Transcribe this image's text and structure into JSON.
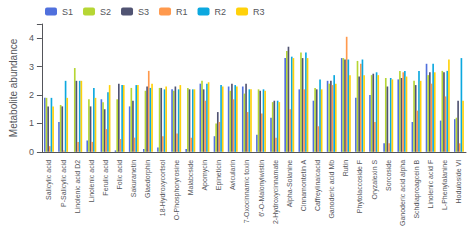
{
  "chart_data": {
    "type": "bar",
    "y_label": "Metabolite abundance",
    "categories": [
      "Salicylic acid",
      "P-Salicylic acid",
      "Linolenic acid D2",
      "Linolenic acid",
      "Ferulic acid",
      "Folic acid",
      "Sakuranetin",
      "Glaedorphin",
      "18-Hydroxycortsol",
      "O-Phosphoryrosine",
      "Malabcside",
      "Apomycin",
      "Epineticin",
      "Avicularin",
      "7-Oxocinnamic toxin",
      "6'-O-Malonylwistin",
      "2-Hydroxycinnamate",
      "Alpha-Solanine",
      "Cinnamontetin A",
      "Caffreylinaicacid",
      "Ganoderic acid Mb",
      "Rutin",
      "Phytolaccoside F",
      "Oryzalexin S",
      "Sorcoside",
      "Ganoderic acid alpha",
      "Schdiaproagcein B",
      "Linolenic acid F",
      "L-Phenylalanine",
      "Hoduloside VI"
    ],
    "series": [
      {
        "name": "S1",
        "values": [
          1.9,
          1.05,
          0.0,
          0.4,
          1.85,
          0.05,
          1.6,
          0.1,
          0.15,
          2.2,
          0.1,
          2.4,
          0.55,
          2.3,
          2.3,
          0.6,
          1.2,
          3.3,
          2.2,
          1.8,
          2.5,
          3.3,
          1.9,
          2.0,
          0.3,
          2.55,
          1.05,
          3.1,
          1.1,
          1.15
        ]
      },
      {
        "name": "S2",
        "values": [
          1.9,
          1.65,
          2.95,
          1.85,
          1.75,
          1.85,
          2.25,
          2.15,
          2.25,
          2.15,
          2.25,
          2.5,
          1.0,
          2.15,
          2.05,
          2.2,
          1.75,
          3.55,
          3.5,
          2.25,
          2.4,
          3.3,
          3.2,
          2.7,
          2.6,
          2.85,
          2.5,
          2.7,
          2.85,
          1.2
        ]
      },
      {
        "name": "S3",
        "values": [
          1.6,
          1.6,
          2.5,
          1.6,
          1.5,
          2.4,
          1.8,
          2.3,
          2.25,
          2.3,
          2.2,
          2.2,
          1.4,
          2.4,
          2.4,
          2.15,
          1.8,
          3.7,
          3.3,
          2.2,
          2.5,
          3.25,
          2.65,
          2.75,
          2.3,
          2.6,
          2.35,
          2.8,
          2.8,
          1.8
        ]
      },
      {
        "name": "R1",
        "values": [
          0.2,
          0.05,
          0.35,
          0.35,
          0.8,
          0.45,
          0.5,
          2.85,
          0.55,
          0.65,
          0.5,
          1.8,
          1.05,
          1.85,
          1.4,
          1.35,
          0.5,
          1.5,
          2.2,
          0.9,
          2.35,
          4.05,
          3.1,
          1.05,
          0.3,
          2.8,
          1.45,
          2.4,
          1.95,
          0.3
        ]
      },
      {
        "name": "R2",
        "values": [
          1.9,
          2.5,
          2.5,
          2.25,
          2.1,
          2.35,
          2.35,
          2.25,
          2.2,
          2.2,
          2.2,
          2.4,
          2.35,
          2.35,
          2.2,
          2.2,
          1.8,
          3.35,
          3.5,
          2.55,
          2.7,
          3.25,
          3.25,
          2.8,
          2.6,
          2.85,
          2.85,
          3.1,
          2.85,
          3.3
        ]
      },
      {
        "name": "R3",
        "values": [
          1.6,
          1.9,
          2.5,
          1.9,
          2.35,
          2.35,
          2.35,
          2.4,
          2.3,
          2.35,
          2.2,
          2.45,
          2.3,
          2.3,
          2.2,
          2.15,
          1.75,
          3.3,
          3.3,
          2.2,
          2.4,
          2.7,
          2.7,
          2.7,
          2.55,
          2.65,
          2.5,
          2.8,
          3.25,
          1.8
        ]
      }
    ],
    "ylim": [
      0,
      4.5
    ],
    "yticks": [
      0,
      1,
      2,
      3,
      4
    ],
    "grid": false,
    "legend": "upper left"
  }
}
